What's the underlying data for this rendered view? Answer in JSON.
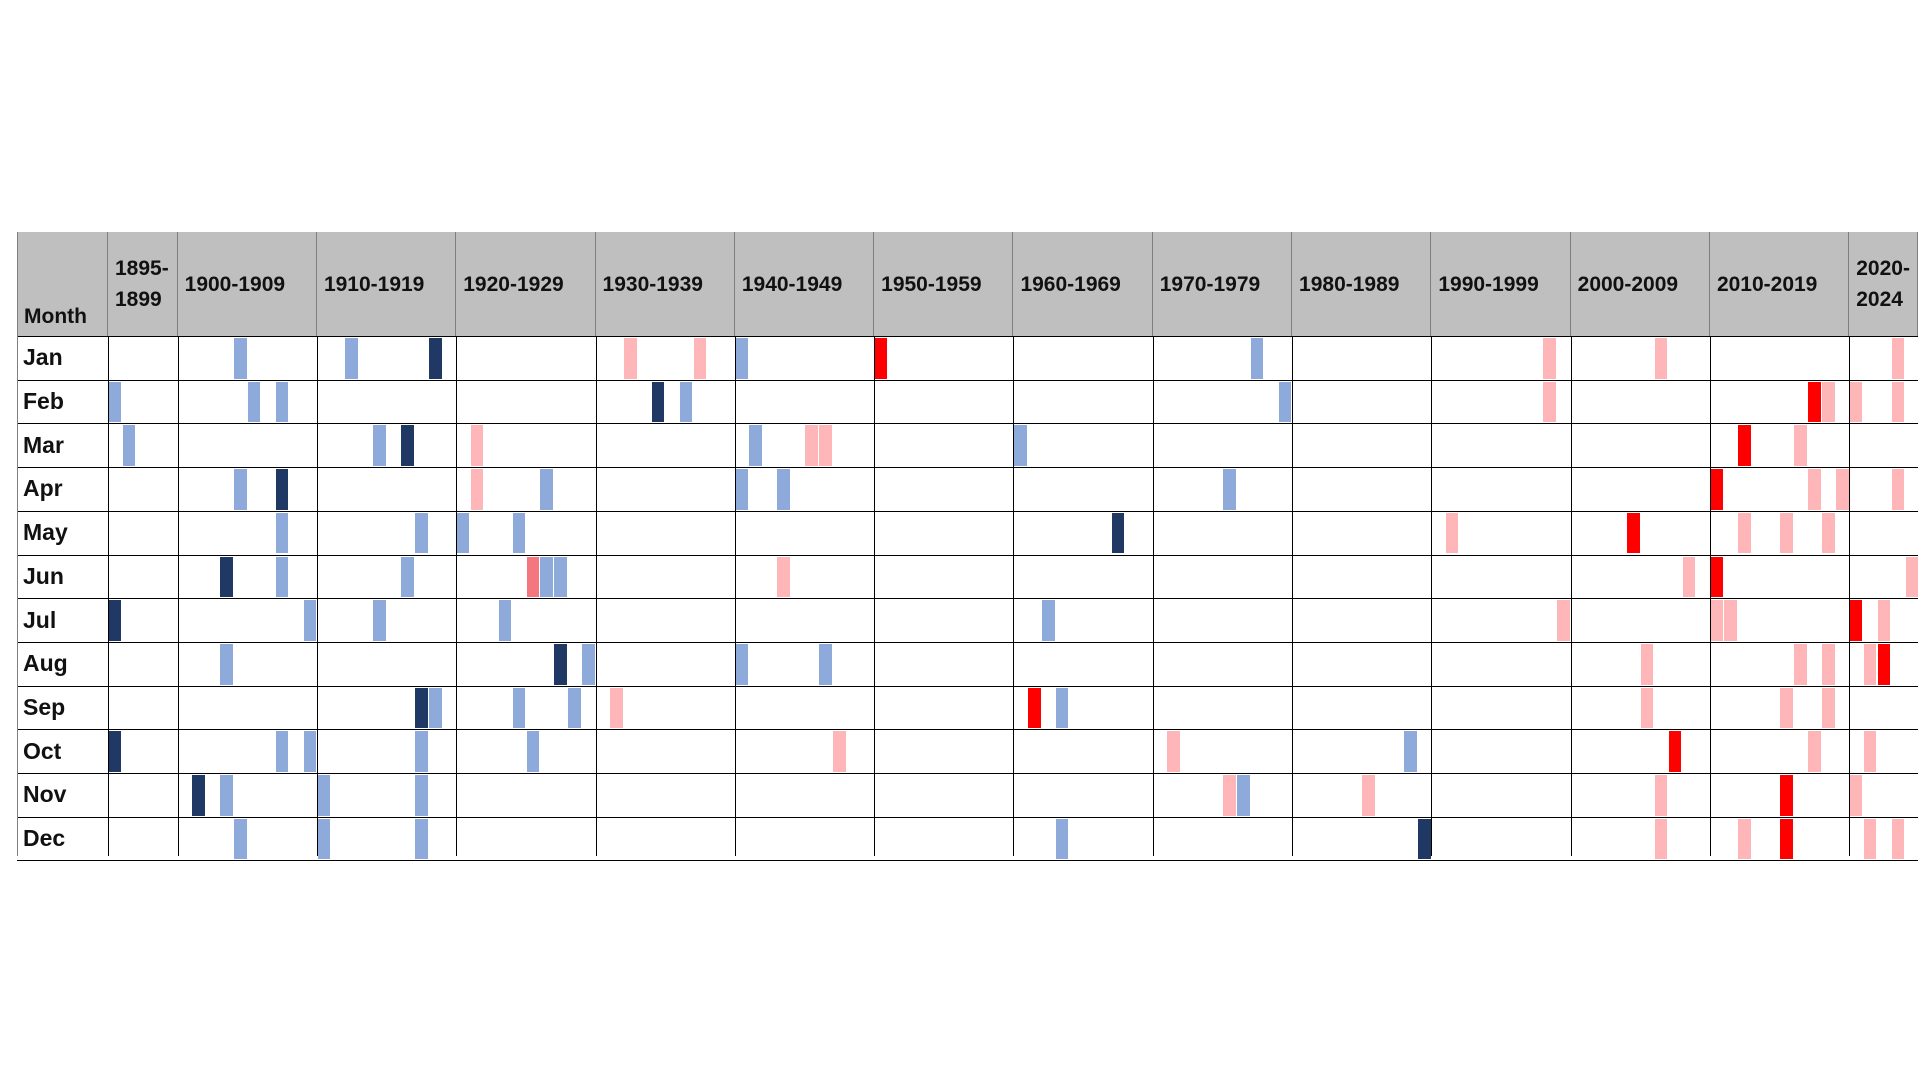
{
  "table": {
    "columns": [
      "Month",
      "1895-1899",
      "1900-1909",
      "1910-1919",
      "1920-1929",
      "1930-1939",
      "1940-1949",
      "1950-1959",
      "1960-1969",
      "1970-1979",
      "1980-1989",
      "1990-1999",
      "2000-2009",
      "2010-2019",
      "2020-2024"
    ],
    "rows": [
      {
        "month": "Jan",
        "marks": [
          {
            "year": 1904,
            "color": "#8eaadb"
          },
          {
            "year": 1912,
            "color": "#8eaadb"
          },
          {
            "year": 1918,
            "color": "#1f3864"
          },
          {
            "year": 1932,
            "color": "#ffb6b9"
          },
          {
            "year": 1937,
            "color": "#ffb6b9"
          },
          {
            "year": 1940,
            "color": "#8eaadb"
          },
          {
            "year": 1950,
            "color": "#ff0000"
          },
          {
            "year": 1977,
            "color": "#8eaadb"
          },
          {
            "year": 1998,
            "color": "#ffb6b9"
          },
          {
            "year": 2006,
            "color": "#ffb6b9"
          },
          {
            "year": 2023,
            "color": "#ffb6b9"
          }
        ]
      },
      {
        "month": "Feb",
        "marks": [
          {
            "year": 1895,
            "color": "#8eaadb"
          },
          {
            "year": 1905,
            "color": "#8eaadb"
          },
          {
            "year": 1907,
            "color": "#8eaadb"
          },
          {
            "year": 1934,
            "color": "#1f3864"
          },
          {
            "year": 1936,
            "color": "#8eaadb"
          },
          {
            "year": 1979,
            "color": "#8eaadb"
          },
          {
            "year": 1998,
            "color": "#ffb6b9"
          },
          {
            "year": 2017,
            "color": "#ff0000"
          },
          {
            "year": 2018,
            "color": "#ffb6b9"
          },
          {
            "year": 2020,
            "color": "#ffb6b9"
          },
          {
            "year": 2023,
            "color": "#ffb6b9"
          }
        ]
      },
      {
        "month": "Mar",
        "marks": [
          {
            "year": 1896,
            "color": "#8eaadb"
          },
          {
            "year": 1914,
            "color": "#8eaadb"
          },
          {
            "year": 1916,
            "color": "#1f3864"
          },
          {
            "year": 1921,
            "color": "#ffb6b9"
          },
          {
            "year": 1941,
            "color": "#8eaadb"
          },
          {
            "year": 1945,
            "color": "#ffb6b9"
          },
          {
            "year": 1946,
            "color": "#ffb6b9"
          },
          {
            "year": 1960,
            "color": "#8eaadb"
          },
          {
            "year": 2012,
            "color": "#ff0000"
          },
          {
            "year": 2016,
            "color": "#ffb6b9"
          }
        ]
      },
      {
        "month": "Apr",
        "marks": [
          {
            "year": 1904,
            "color": "#8eaadb"
          },
          {
            "year": 1907,
            "color": "#1f3864"
          },
          {
            "year": 1921,
            "color": "#ffb6b9"
          },
          {
            "year": 1926,
            "color": "#8eaadb"
          },
          {
            "year": 1940,
            "color": "#8eaadb"
          },
          {
            "year": 1943,
            "color": "#8eaadb"
          },
          {
            "year": 1975,
            "color": "#8eaadb"
          },
          {
            "year": 2010,
            "color": "#ff0000"
          },
          {
            "year": 2017,
            "color": "#ffb6b9"
          },
          {
            "year": 2019,
            "color": "#ffb6b9"
          },
          {
            "year": 2023,
            "color": "#ffb6b9"
          }
        ]
      },
      {
        "month": "May",
        "marks": [
          {
            "year": 1907,
            "color": "#8eaadb"
          },
          {
            "year": 1917,
            "color": "#8eaadb"
          },
          {
            "year": 1920,
            "color": "#8eaadb"
          },
          {
            "year": 1924,
            "color": "#8eaadb"
          },
          {
            "year": 1967,
            "color": "#1f3864"
          },
          {
            "year": 1991,
            "color": "#ffb6b9"
          },
          {
            "year": 2004,
            "color": "#ff0000"
          },
          {
            "year": 2012,
            "color": "#ffb6b9"
          },
          {
            "year": 2015,
            "color": "#ffb6b9"
          },
          {
            "year": 2018,
            "color": "#ffb6b9"
          }
        ]
      },
      {
        "month": "Jun",
        "marks": [
          {
            "year": 1903,
            "color": "#1f3864"
          },
          {
            "year": 1907,
            "color": "#8eaadb"
          },
          {
            "year": 1916,
            "color": "#8eaadb"
          },
          {
            "year": 1925,
            "color": "#f4777f"
          },
          {
            "year": 1926,
            "color": "#8eaadb"
          },
          {
            "year": 1927,
            "color": "#8eaadb"
          },
          {
            "year": 1943,
            "color": "#ffb6b9"
          },
          {
            "year": 2008,
            "color": "#ffb6b9"
          },
          {
            "year": 2010,
            "color": "#ff0000"
          },
          {
            "year": 2024,
            "color": "#ffb6b9"
          }
        ]
      },
      {
        "month": "Jul",
        "marks": [
          {
            "year": 1895,
            "color": "#1f3864"
          },
          {
            "year": 1909,
            "color": "#8eaadb"
          },
          {
            "year": 1914,
            "color": "#8eaadb"
          },
          {
            "year": 1923,
            "color": "#8eaadb"
          },
          {
            "year": 1962,
            "color": "#8eaadb"
          },
          {
            "year": 1999,
            "color": "#ffb6b9"
          },
          {
            "year": 2010,
            "color": "#ffb6b9"
          },
          {
            "year": 2011,
            "color": "#ffb6b9"
          },
          {
            "year": 2020,
            "color": "#ff0000"
          },
          {
            "year": 2022,
            "color": "#ffb6b9"
          }
        ]
      },
      {
        "month": "Aug",
        "marks": [
          {
            "year": 1903,
            "color": "#8eaadb"
          },
          {
            "year": 1927,
            "color": "#1f3864"
          },
          {
            "year": 1929,
            "color": "#8eaadb"
          },
          {
            "year": 1940,
            "color": "#8eaadb"
          },
          {
            "year": 1946,
            "color": "#8eaadb"
          },
          {
            "year": 2005,
            "color": "#ffb6b9"
          },
          {
            "year": 2016,
            "color": "#ffb6b9"
          },
          {
            "year": 2018,
            "color": "#ffb6b9"
          },
          {
            "year": 2021,
            "color": "#ffb6b9"
          },
          {
            "year": 2022,
            "color": "#ff0000"
          }
        ]
      },
      {
        "month": "Sep",
        "marks": [
          {
            "year": 1917,
            "color": "#1f3864"
          },
          {
            "year": 1918,
            "color": "#8eaadb"
          },
          {
            "year": 1924,
            "color": "#8eaadb"
          },
          {
            "year": 1928,
            "color": "#8eaadb"
          },
          {
            "year": 1931,
            "color": "#ffb6b9"
          },
          {
            "year": 1961,
            "color": "#ff0000"
          },
          {
            "year": 1963,
            "color": "#8eaadb"
          },
          {
            "year": 2005,
            "color": "#ffb6b9"
          },
          {
            "year": 2015,
            "color": "#ffb6b9"
          },
          {
            "year": 2018,
            "color": "#ffb6b9"
          }
        ]
      },
      {
        "month": "Oct",
        "marks": [
          {
            "year": 1895,
            "color": "#1f3864"
          },
          {
            "year": 1907,
            "color": "#8eaadb"
          },
          {
            "year": 1909,
            "color": "#8eaadb"
          },
          {
            "year": 1917,
            "color": "#8eaadb"
          },
          {
            "year": 1925,
            "color": "#8eaadb"
          },
          {
            "year": 1947,
            "color": "#ffb6b9"
          },
          {
            "year": 1971,
            "color": "#ffb6b9"
          },
          {
            "year": 1988,
            "color": "#8eaadb"
          },
          {
            "year": 2007,
            "color": "#ff0000"
          },
          {
            "year": 2017,
            "color": "#ffb6b9"
          },
          {
            "year": 2021,
            "color": "#ffb6b9"
          }
        ]
      },
      {
        "month": "Nov",
        "marks": [
          {
            "year": 1901,
            "color": "#1f3864"
          },
          {
            "year": 1903,
            "color": "#8eaadb"
          },
          {
            "year": 1910,
            "color": "#8eaadb"
          },
          {
            "year": 1917,
            "color": "#8eaadb"
          },
          {
            "year": 1975,
            "color": "#ffb6b9"
          },
          {
            "year": 1976,
            "color": "#8eaadb"
          },
          {
            "year": 1985,
            "color": "#ffb6b9"
          },
          {
            "year": 2006,
            "color": "#ffb6b9"
          },
          {
            "year": 2015,
            "color": "#ff0000"
          },
          {
            "year": 2020,
            "color": "#ffb6b9"
          }
        ]
      },
      {
        "month": "Dec",
        "marks": [
          {
            "year": 1904,
            "color": "#8eaadb"
          },
          {
            "year": 1910,
            "color": "#8eaadb"
          },
          {
            "year": 1917,
            "color": "#8eaadb"
          },
          {
            "year": 1963,
            "color": "#8eaadb"
          },
          {
            "year": 1989,
            "color": "#1f3864"
          },
          {
            "year": 2006,
            "color": "#ffb6b9"
          },
          {
            "year": 2012,
            "color": "#ffb6b9"
          },
          {
            "year": 2015,
            "color": "#ff0000"
          },
          {
            "year": 2021,
            "color": "#ffb6b9"
          },
          {
            "year": 2023,
            "color": "#ffb6b9"
          }
        ]
      }
    ]
  }
}
